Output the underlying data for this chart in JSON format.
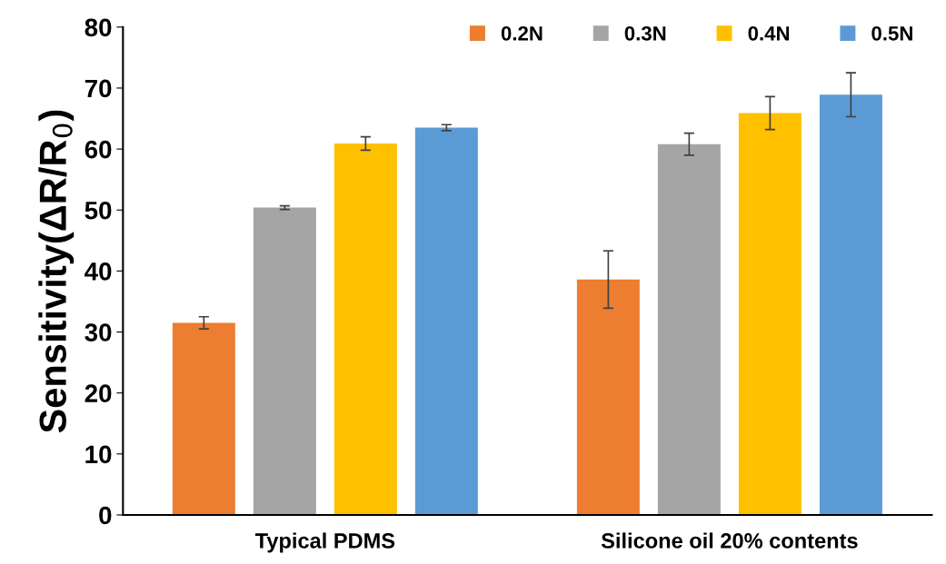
{
  "chart_data": {
    "type": "bar",
    "ylabel": "Sensitivity(ΔR/R$_{0}$)",
    "categories": [
      "Typical PDMS",
      "Silicone oil 20% contents"
    ],
    "series": [
      {
        "name": "0.2N",
        "color": "#ed7d31",
        "values": [
          31.5,
          38.6
        ],
        "errors": [
          1.0,
          4.7
        ]
      },
      {
        "name": "0.3N",
        "color": "#a5a5a5",
        "values": [
          50.4,
          60.8
        ],
        "errors": [
          0.3,
          1.8
        ]
      },
      {
        "name": "0.4N",
        "color": "#ffc000",
        "values": [
          60.9,
          65.9
        ],
        "errors": [
          1.1,
          2.7
        ]
      },
      {
        "name": "0.5N",
        "color": "#5b9bd5",
        "values": [
          63.5,
          68.9
        ],
        "errors": [
          0.5,
          3.6
        ]
      }
    ],
    "ylim": [
      0,
      80
    ],
    "yticks": [
      0,
      10,
      20,
      30,
      40,
      50,
      60,
      70,
      80
    ],
    "grid": false,
    "legend": "top right"
  }
}
